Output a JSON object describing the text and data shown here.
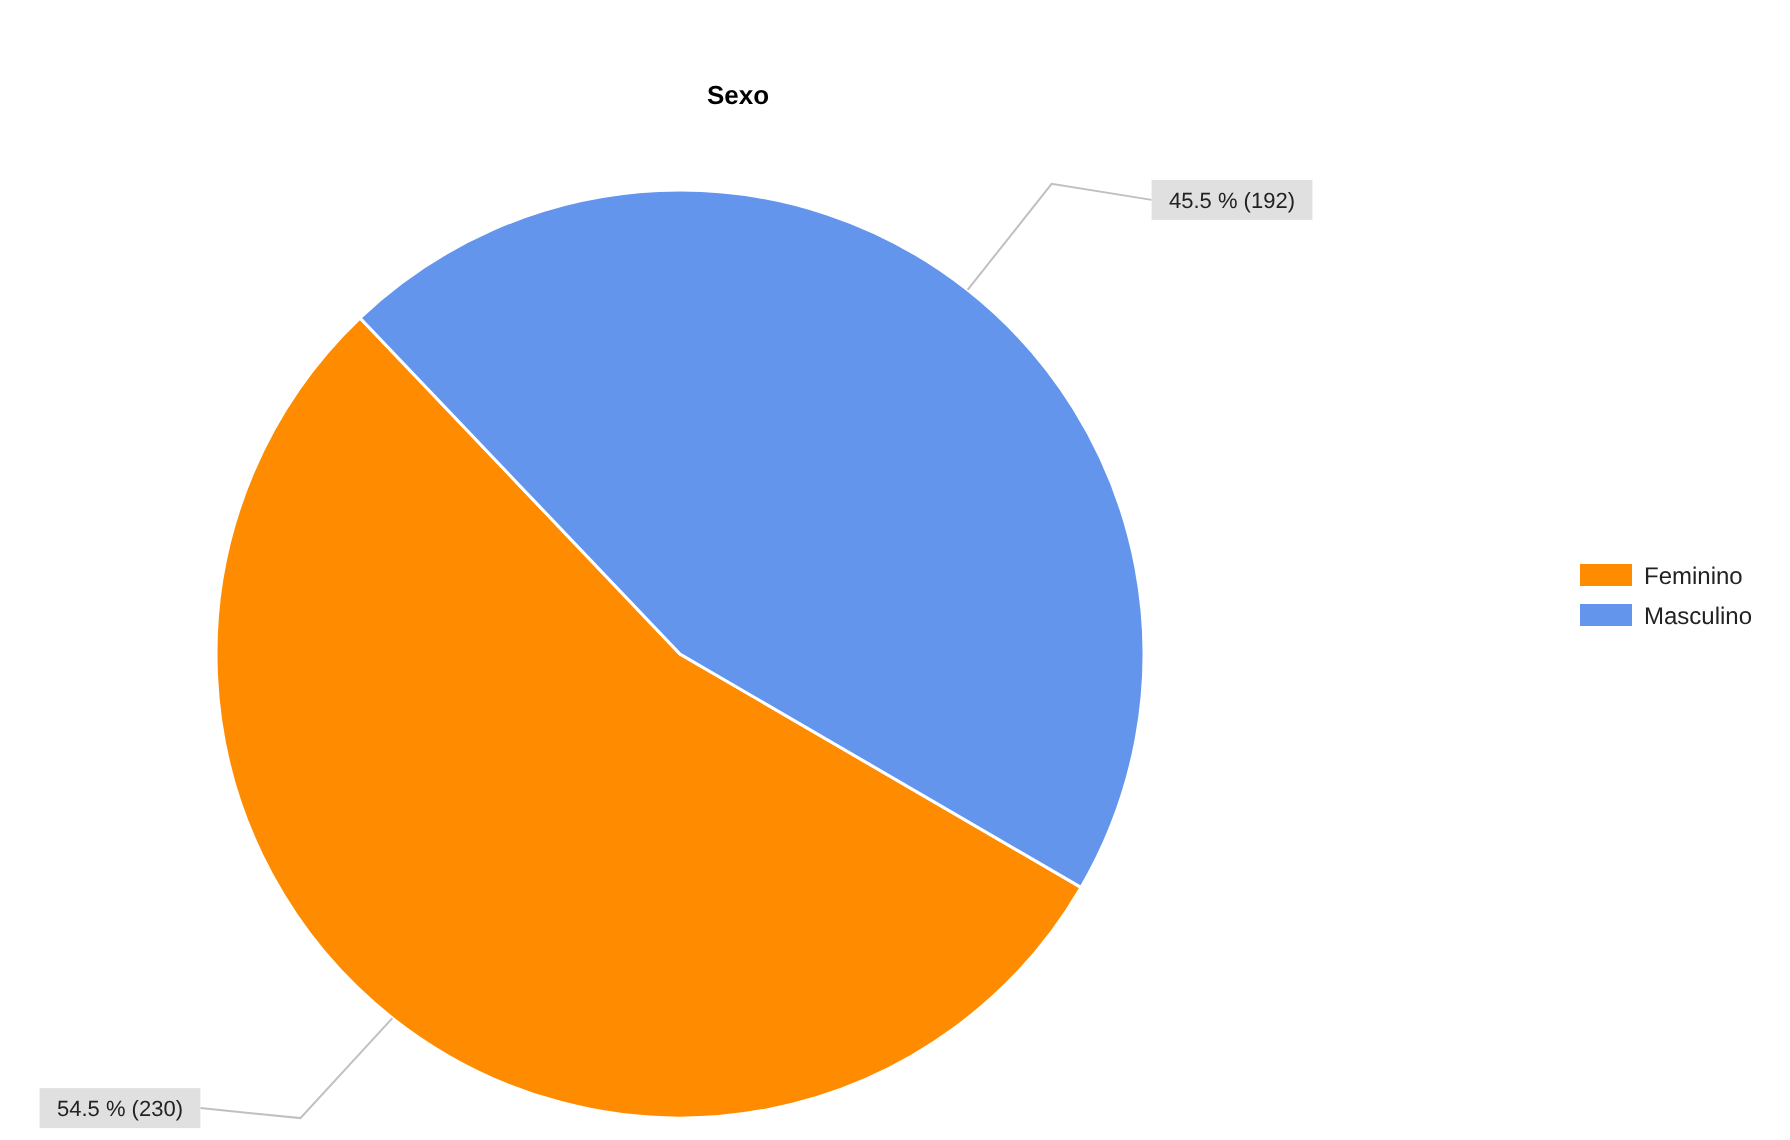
{
  "chart_data": {
    "type": "pie",
    "title": "Sexo",
    "categories": [
      "Feminino",
      "Masculino"
    ],
    "values": [
      230,
      192
    ],
    "colors": [
      "#ff8c00",
      "#6495ed"
    ],
    "value_labels": [
      "54.5 % (230)",
      "45.5 % (192)"
    ],
    "legend": "right"
  }
}
